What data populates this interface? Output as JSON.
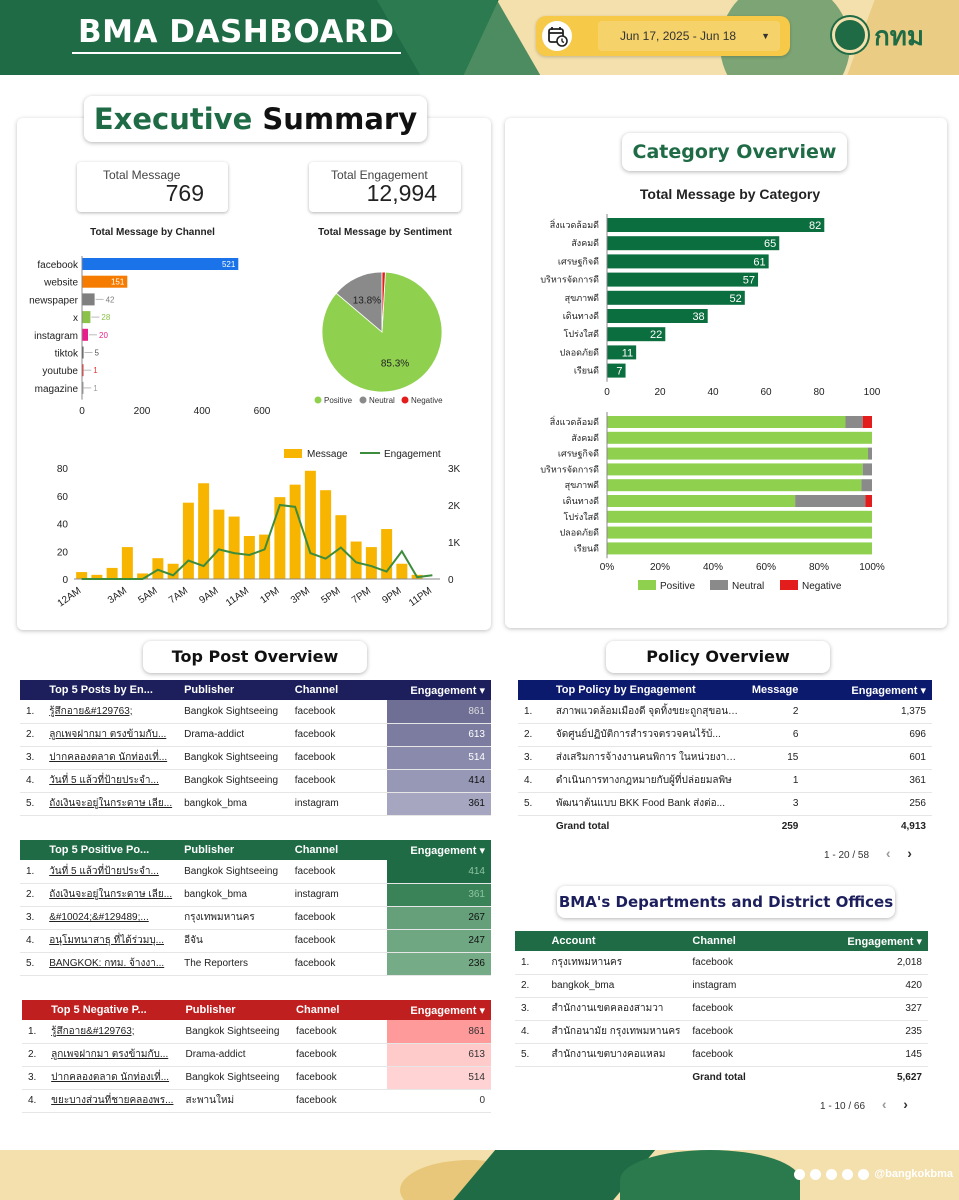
{
  "header": {
    "title": "BMA DASHBOARD",
    "date_range": "Jun 17, 2025 - Jun 18",
    "logo_text": "กทม"
  },
  "executive_summary": {
    "title_green": "Executive",
    "title_black": "Summary",
    "total_message_label": "Total Message",
    "total_message_value": "769",
    "total_engagement_label": "Total Engagement",
    "total_engagement_value": "12,994"
  },
  "category_overview": {
    "title": "Category Overview"
  },
  "colors": {
    "primary_green": "#1e6b45",
    "bar_green": "#0b6e3f",
    "positive": "#8fd14f",
    "neutral": "#8a8a8a",
    "negative": "#e31c1c",
    "facebook": "#1a73e8",
    "website": "#f57c00",
    "instagram": "#e91e8c",
    "x": "#8bc34a",
    "message_bar": "#f7b500",
    "engagement_line": "#3c8c3c",
    "navy": "#1c1f5c"
  },
  "chart_data": [
    {
      "type": "bar",
      "orientation": "horizontal",
      "title": "Total Message by Channel",
      "categories": [
        "facebook",
        "website",
        "newspaper",
        "x",
        "instagram",
        "tiktok",
        "youtube",
        "magazine"
      ],
      "values": [
        521,
        151,
        42,
        28,
        20,
        5,
        1,
        1
      ],
      "colors": [
        "#1a73e8",
        "#f57c00",
        "#7f7f7f",
        "#8bc34a",
        "#e91e8c",
        "#555555",
        "#e53935",
        "#9e9e9e"
      ],
      "x_ticks": [
        "0",
        "200",
        "400",
        "600"
      ],
      "xlim": [
        0,
        600
      ]
    },
    {
      "type": "pie",
      "title": "Total Message by Sentiment",
      "labels": [
        "Positive",
        "Neutral",
        "Negative"
      ],
      "values": [
        85.3,
        13.8,
        0.9
      ],
      "value_labels": [
        "85.3%",
        "13.8%",
        ""
      ],
      "colors": [
        "#8fd14f",
        "#8a8a8a",
        "#e31c1c"
      ],
      "legend": "bottom"
    },
    {
      "type": "bar-line",
      "categories": [
        "12AM",
        "1AM",
        "2AM",
        "3AM",
        "4AM",
        "5AM",
        "6AM",
        "7AM",
        "8AM",
        "9AM",
        "10AM",
        "11AM",
        "12PM",
        "1PM",
        "2PM",
        "3PM",
        "4PM",
        "5PM",
        "6PM",
        "7PM",
        "8PM",
        "9PM",
        "10PM",
        "11PM"
      ],
      "x_tick_labels": [
        "12AM",
        "3AM",
        "5AM",
        "7AM",
        "9AM",
        "11AM",
        "1PM",
        "3PM",
        "5PM",
        "7PM",
        "9PM",
        "11PM"
      ],
      "series": [
        {
          "name": "Message",
          "type": "bar",
          "axis": "left",
          "values": [
            5,
            3,
            8,
            23,
            4,
            15,
            11,
            55,
            69,
            50,
            45,
            31,
            32,
            59,
            68,
            78,
            64,
            46,
            27,
            23,
            36,
            11,
            3,
            0
          ]
        },
        {
          "name": "Engagement",
          "type": "line",
          "axis": "right",
          "values": [
            0,
            0,
            0,
            0,
            0,
            250,
            100,
            500,
            350,
            800,
            700,
            650,
            800,
            2000,
            1950,
            700,
            550,
            850,
            450,
            350,
            200,
            750,
            50,
            100
          ]
        }
      ],
      "ylim_left": [
        0,
        80
      ],
      "y_ticks_left": [
        "0",
        "20",
        "40",
        "60",
        "80"
      ],
      "ylim_right": [
        0,
        3000
      ],
      "y_ticks_right": [
        "0",
        "1K",
        "2K",
        "3K"
      ],
      "legend": "top-right"
    },
    {
      "type": "bar",
      "orientation": "horizontal",
      "title": "Total Message by Category",
      "categories": [
        "สิ่งแวดล้อมดี",
        "สังคมดี",
        "เศรษฐกิจดี",
        "บริหารจัดการดี",
        "สุขภาพดี",
        "เดินทางดี",
        "โปร่งใสดี",
        "ปลอดภัยดี",
        "เรียนดี"
      ],
      "values": [
        82,
        65,
        61,
        57,
        52,
        38,
        22,
        11,
        7
      ],
      "x_ticks": [
        "0",
        "20",
        "40",
        "60",
        "80",
        "100"
      ],
      "xlim": [
        0,
        100
      ]
    },
    {
      "type": "bar",
      "orientation": "horizontal",
      "stacked": "percent",
      "categories": [
        "สิ่งแวดล้อมดี",
        "สังคมดี",
        "เศรษฐกิจดี",
        "บริหารจัดการดี",
        "สุขภาพดี",
        "เดินทางดี",
        "โปร่งใสดี",
        "ปลอดภัยดี",
        "เรียนดี"
      ],
      "series": [
        {
          "name": "Positive",
          "values": [
            90,
            100,
            98.5,
            96.5,
            96,
            71,
            100,
            100,
            100
          ]
        },
        {
          "name": "Neutral",
          "values": [
            6.5,
            0,
            1.5,
            3.5,
            4,
            26.5,
            0,
            0,
            0
          ]
        },
        {
          "name": "Negative",
          "values": [
            3.5,
            0,
            0,
            0,
            0,
            2.5,
            0,
            0,
            0
          ]
        }
      ],
      "x_ticks": [
        "0%",
        "20%",
        "40%",
        "60%",
        "80%",
        "100%"
      ],
      "legend": "bottom"
    }
  ],
  "top_post": {
    "title": "Top Post Overview",
    "top5": {
      "headers": [
        "Top 5 Posts by En...",
        "Publisher",
        "Channel",
        "Engagement ▾"
      ],
      "rows": [
        {
          "n": "1.",
          "post": "รู้สึกอาย&#129763;",
          "publisher": "Bangkok Sightseeing",
          "channel": "facebook",
          "eng": "861"
        },
        {
          "n": "2.",
          "post": "ลูกเพจฝากมา ตรงข้ามกับ...",
          "publisher": "Drama-addict",
          "channel": "facebook",
          "eng": "613"
        },
        {
          "n": "3.",
          "post": "ปากคลองตลาด นักท่องเที่...",
          "publisher": "Bangkok Sightseeing",
          "channel": "facebook",
          "eng": "514"
        },
        {
          "n": "4.",
          "post": "วันที่ 5 แล้วที่ป้ายประจำ...",
          "publisher": "Bangkok Sightseeing",
          "channel": "facebook",
          "eng": "414"
        },
        {
          "n": "5.",
          "post": "ถังเงินจะอยู่ในกระดาษ เลีย...",
          "publisher": "bangkok_bma",
          "channel": "instagram",
          "eng": "361"
        }
      ]
    },
    "positive": {
      "headers": [
        "Top 5 Positive Po...",
        "Publisher",
        "Channel",
        "Engagement ▾"
      ],
      "rows": [
        {
          "n": "1.",
          "post": "วันที่ 5 แล้วที่ป้ายประจำ...",
          "publisher": "Bangkok Sightseeing",
          "channel": "facebook",
          "eng": "414"
        },
        {
          "n": "2.",
          "post": "ถังเงินจะอยู่ในกระดาษ เลีย...",
          "publisher": "bangkok_bma",
          "channel": "instagram",
          "eng": "361"
        },
        {
          "n": "3.",
          "post": "&#10024;&#129489;...",
          "publisher": "กรุงเทพมหานคร",
          "channel": "facebook",
          "eng": "267"
        },
        {
          "n": "4.",
          "post": "อนุโมทนาสาธุ ที่ได้ร่วมบุ...",
          "publisher": "อีจัน",
          "channel": "facebook",
          "eng": "247"
        },
        {
          "n": "5.",
          "post": "BANGKOK: กทม. จ้างงา...",
          "publisher": "The Reporters",
          "channel": "facebook",
          "eng": "236"
        }
      ]
    },
    "negative": {
      "headers": [
        "Top 5 Negative P...",
        "Publisher",
        "Channel",
        "Engagement ▾"
      ],
      "rows": [
        {
          "n": "1.",
          "post": "รู้สึกอาย&#129763;",
          "publisher": "Bangkok Sightseeing",
          "channel": "facebook",
          "eng": "861"
        },
        {
          "n": "2.",
          "post": "ลูกเพจฝากมา ตรงข้ามกับ...",
          "publisher": "Drama-addict",
          "channel": "facebook",
          "eng": "613"
        },
        {
          "n": "3.",
          "post": "ปากคลองตลาด นักท่องเที่...",
          "publisher": "Bangkok Sightseeing",
          "channel": "facebook",
          "eng": "514"
        },
        {
          "n": "4.",
          "post": "ขยะบางส่วนที่ชายคลองพร...",
          "publisher": "สะพานใหม่",
          "channel": "facebook",
          "eng": "0"
        }
      ]
    }
  },
  "policy": {
    "title": "Policy Overview",
    "headers": [
      "Top Policy by Engagement",
      "Message",
      "Engagement ▾"
    ],
    "rows": [
      {
        "n": "1.",
        "policy": "สภาพแวดล้อมเมืองดี จุดทิ้งขยะถูกสุขอนา...",
        "msg": "2",
        "eng": "1,375"
      },
      {
        "n": "2.",
        "policy": "จัดศูนย์ปฏิบัติการสำรวจตรวจคนไร้บ้...",
        "msg": "6",
        "eng": "696"
      },
      {
        "n": "3.",
        "policy": "ส่งเสริมการจ้างงานคนพิการ ในหน่วยงาน...",
        "msg": "15",
        "eng": "601"
      },
      {
        "n": "4.",
        "policy": "ดำเนินการทางกฎหมายกับผู้ที่ปล่อยมลพิษ",
        "msg": "1",
        "eng": "361"
      },
      {
        "n": "5.",
        "policy": "พัฒนาต้นแบบ BKK Food Bank ส่งต่อ...",
        "msg": "3",
        "eng": "256"
      }
    ],
    "grand_total_label": "Grand total",
    "grand_total_msg": "259",
    "grand_total_eng": "4,913",
    "pager": "1 - 20 / 58"
  },
  "departments": {
    "title": "BMA's Departments and District Offices",
    "headers": [
      "Account",
      "Channel",
      "Engagement ▾"
    ],
    "rows": [
      {
        "n": "1.",
        "account": "กรุงเทพมหานคร",
        "channel": "facebook",
        "eng": "2,018"
      },
      {
        "n": "2.",
        "account": "bangkok_bma",
        "channel": "instagram",
        "eng": "420"
      },
      {
        "n": "3.",
        "account": "สำนักงานเขตคลองสามวา",
        "channel": "facebook",
        "eng": "327"
      },
      {
        "n": "4.",
        "account": "สำนักอนามัย กรุงเทพมหานคร",
        "channel": "facebook",
        "eng": "235"
      },
      {
        "n": "5.",
        "account": "สำนักงานเขตบางคอแหลม",
        "channel": "facebook",
        "eng": "145"
      }
    ],
    "grand_total_label": "Grand total",
    "grand_total_eng": "5,627",
    "pager": "1 - 10 / 66"
  },
  "footer": {
    "social_handle": "@bangkokbma"
  }
}
